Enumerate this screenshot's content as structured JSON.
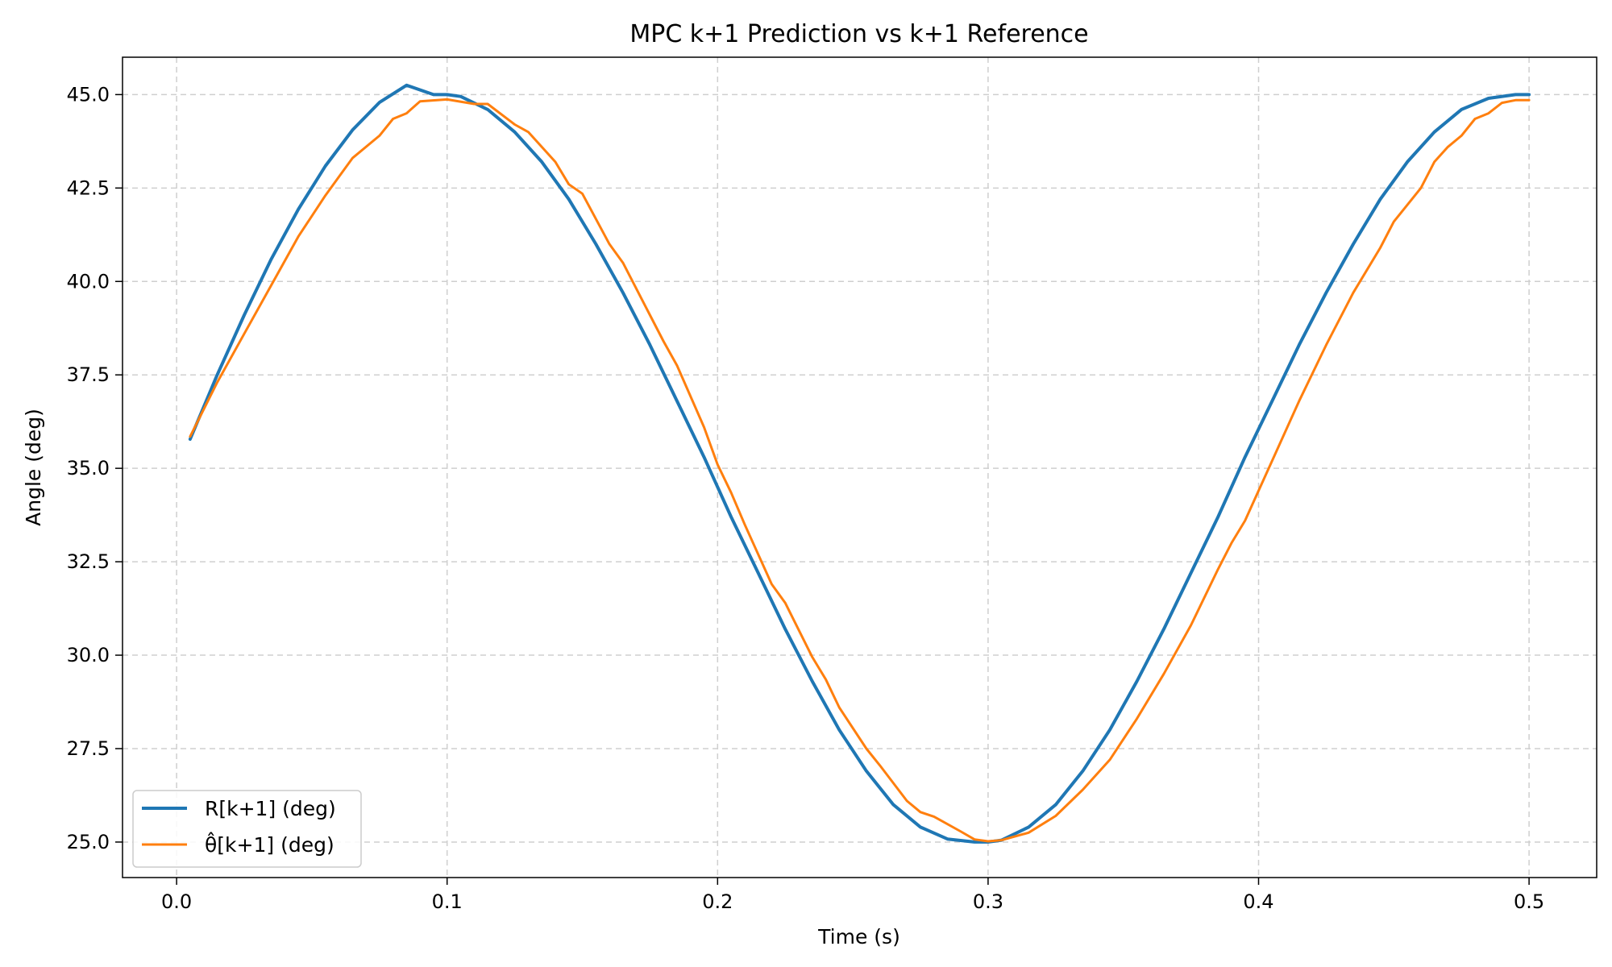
{
  "chart_data": {
    "type": "line",
    "title": "MPC k+1 Prediction vs k+1 Reference",
    "xlabel": "Time (s)",
    "ylabel": "Angle (deg)",
    "xlim": [
      -0.02,
      0.525
    ],
    "ylim": [
      24.05,
      46.0
    ],
    "xticks": [
      0.0,
      0.1,
      0.2,
      0.3,
      0.4,
      0.5
    ],
    "xtick_labels": [
      "0.0",
      "0.1",
      "0.2",
      "0.3",
      "0.4",
      "0.5"
    ],
    "yticks": [
      25.0,
      27.5,
      30.0,
      32.5,
      35.0,
      37.5,
      40.0,
      42.5,
      45.0
    ],
    "ytick_labels": [
      "25.0",
      "27.5",
      "30.0",
      "32.5",
      "35.0",
      "37.5",
      "40.0",
      "42.5",
      "45.0"
    ],
    "grid": true,
    "legend_position": "lower-left",
    "series": [
      {
        "name": "R[k+1] (deg)",
        "color": "#1f77b4",
        "x": [
          0.005,
          0.015,
          0.025,
          0.035,
          0.045,
          0.055,
          0.065,
          0.075,
          0.085,
          0.095,
          0.1,
          0.105,
          0.115,
          0.125,
          0.135,
          0.145,
          0.155,
          0.165,
          0.175,
          0.185,
          0.195,
          0.205,
          0.215,
          0.225,
          0.235,
          0.245,
          0.255,
          0.265,
          0.275,
          0.285,
          0.295,
          0.3,
          0.305,
          0.315,
          0.325,
          0.335,
          0.345,
          0.355,
          0.365,
          0.375,
          0.385,
          0.395,
          0.405,
          0.415,
          0.425,
          0.435,
          0.445,
          0.455,
          0.465,
          0.475,
          0.485,
          0.495,
          0.5
        ],
        "y": [
          35.78,
          37.5,
          39.1,
          40.6,
          41.93,
          43.09,
          44.05,
          44.79,
          45.25,
          45.0,
          45.0,
          44.95,
          44.6,
          44.0,
          43.2,
          42.2,
          41.0,
          39.7,
          38.3,
          36.8,
          35.3,
          33.7,
          32.2,
          30.7,
          29.3,
          28.0,
          26.9,
          26.0,
          25.4,
          25.08,
          25.0,
          25.0,
          25.05,
          25.4,
          26.0,
          26.9,
          28.0,
          29.3,
          30.7,
          32.2,
          33.7,
          35.3,
          36.8,
          38.3,
          39.7,
          41.0,
          42.2,
          43.2,
          44.0,
          44.6,
          44.9,
          45.0,
          45.0
        ]
      },
      {
        "name": "θ̂[k+1] (deg)",
        "color": "#ff7f0e",
        "x": [
          0.005,
          0.015,
          0.025,
          0.035,
          0.045,
          0.055,
          0.06,
          0.065,
          0.075,
          0.08,
          0.085,
          0.09,
          0.1,
          0.11,
          0.115,
          0.125,
          0.13,
          0.14,
          0.145,
          0.15,
          0.16,
          0.165,
          0.175,
          0.18,
          0.185,
          0.195,
          0.2,
          0.205,
          0.21,
          0.22,
          0.225,
          0.235,
          0.24,
          0.245,
          0.255,
          0.26,
          0.27,
          0.275,
          0.28,
          0.29,
          0.295,
          0.3,
          0.305,
          0.315,
          0.325,
          0.335,
          0.345,
          0.355,
          0.365,
          0.375,
          0.385,
          0.39,
          0.395,
          0.405,
          0.415,
          0.425,
          0.435,
          0.445,
          0.45,
          0.46,
          0.465,
          0.47,
          0.475,
          0.48,
          0.485,
          0.49,
          0.495,
          0.5
        ],
        "y": [
          35.85,
          37.3,
          38.6,
          39.9,
          41.2,
          42.3,
          42.8,
          43.3,
          43.9,
          44.35,
          44.5,
          44.82,
          44.87,
          44.75,
          44.75,
          44.2,
          44.0,
          43.2,
          42.6,
          42.35,
          41.0,
          40.5,
          39.1,
          38.4,
          37.75,
          36.1,
          35.1,
          34.35,
          33.5,
          31.9,
          31.4,
          29.95,
          29.35,
          28.6,
          27.5,
          27.05,
          26.1,
          25.8,
          25.68,
          25.28,
          25.07,
          25.02,
          25.05,
          25.25,
          25.7,
          26.4,
          27.2,
          28.3,
          29.5,
          30.8,
          32.3,
          33.0,
          33.6,
          35.2,
          36.8,
          38.3,
          39.7,
          40.9,
          41.6,
          42.5,
          43.2,
          43.6,
          43.9,
          44.35,
          44.5,
          44.78,
          44.85,
          44.85
        ]
      }
    ]
  }
}
